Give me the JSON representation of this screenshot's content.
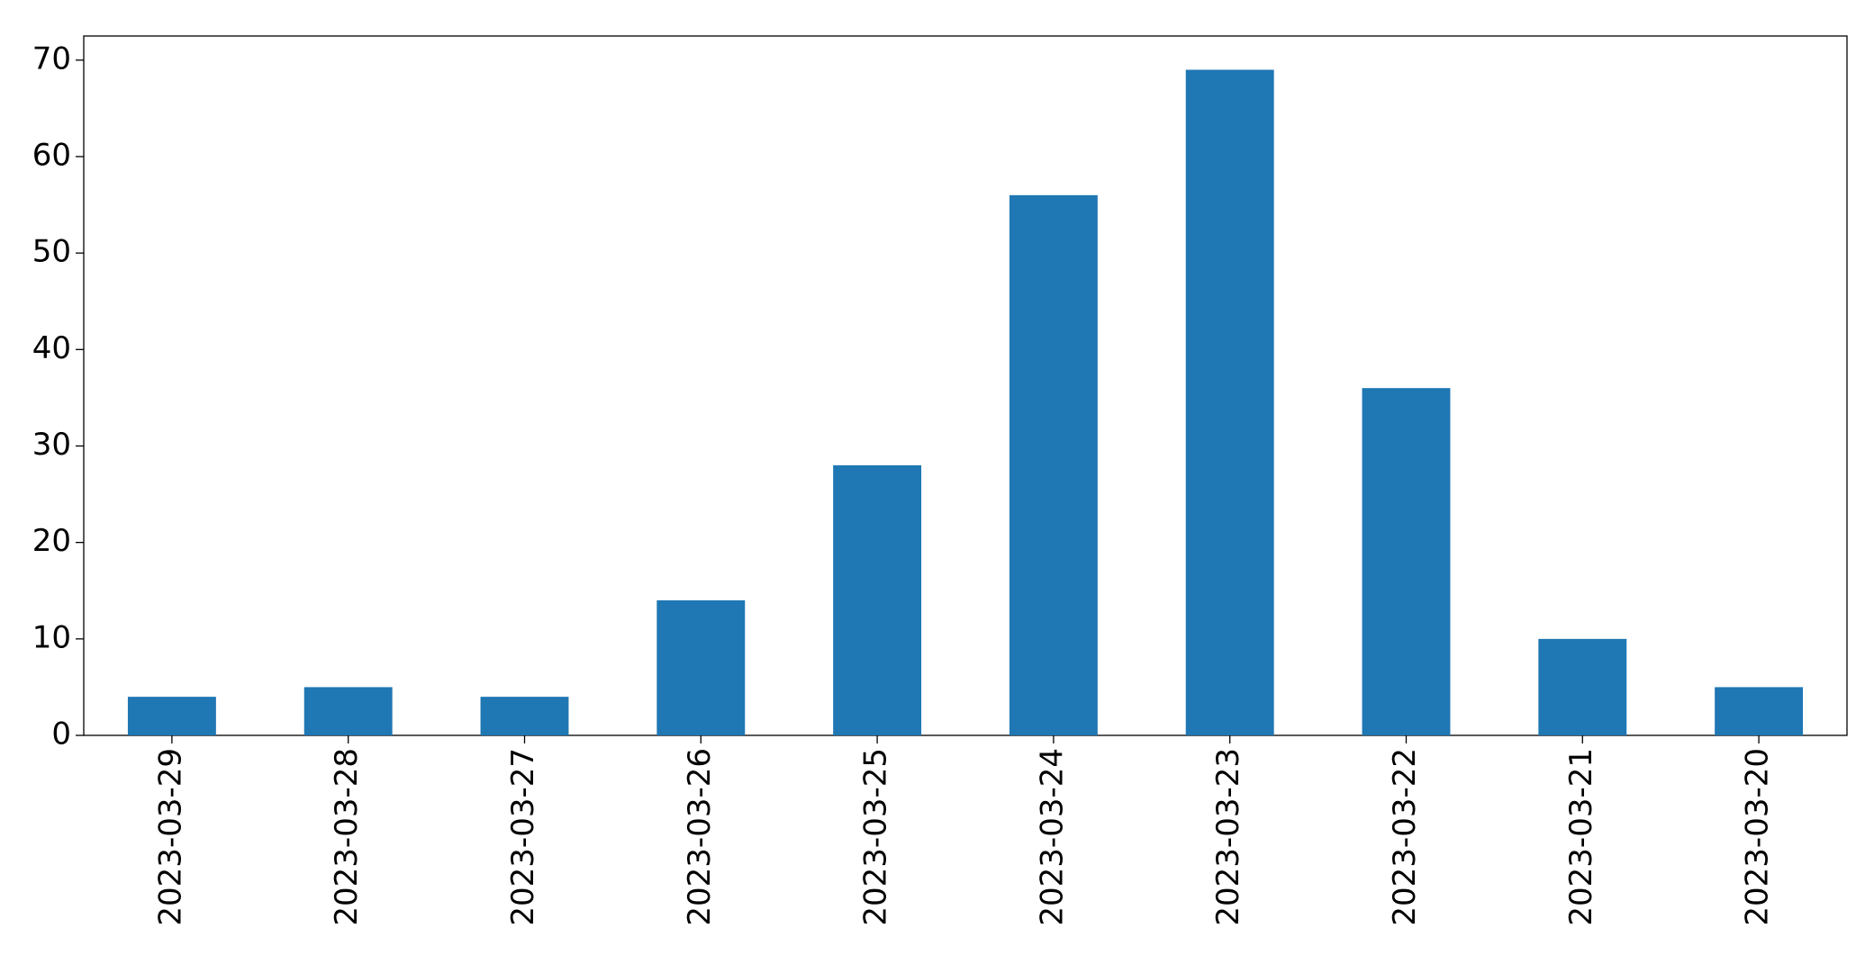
{
  "chart_data": {
    "type": "bar",
    "categories": [
      "2023-03-29",
      "2023-03-28",
      "2023-03-27",
      "2023-03-26",
      "2023-03-25",
      "2023-03-24",
      "2023-03-23",
      "2023-03-22",
      "2023-03-21",
      "2023-03-20"
    ],
    "values": [
      4,
      5,
      4,
      14,
      28,
      56,
      69,
      36,
      10,
      5
    ],
    "color": "#1f77b4",
    "ylim": [
      0,
      72.5
    ],
    "yticks": [
      0,
      10,
      20,
      30,
      40,
      50,
      60,
      70
    ],
    "grid": false
  }
}
